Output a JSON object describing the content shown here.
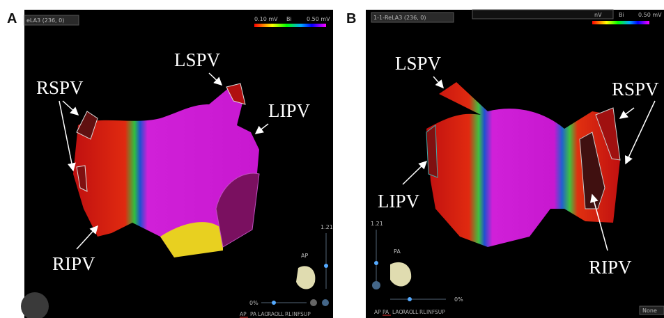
{
  "panels": [
    {
      "label": "A",
      "header": "eLA3 (236, 0)",
      "scale": {
        "min": "0.10 mV",
        "mode": "Bi",
        "max": "0.50 mV"
      },
      "zoom": "1.21",
      "view_label": "AP",
      "percent": "0%",
      "view_buttons": [
        "AP",
        "PA",
        "LAO",
        "RAO",
        "LL",
        "RL",
        "INF",
        "SUP"
      ],
      "annotations": {
        "lspv": "LSPV",
        "rspv": "RSPV",
        "lipv": "LIPV",
        "ripv": "RIPV"
      }
    },
    {
      "label": "B",
      "header": "1-1-ReLA3 (236, 0)",
      "scale": {
        "min": "nV",
        "mode": "Bi",
        "max": "0.50 mV"
      },
      "zoom": "1.21",
      "view_label": "PA",
      "percent": "0%",
      "view_buttons": [
        "AP",
        "PA",
        "LAO",
        "RAO",
        "LL",
        "RL",
        "INF",
        "SUP"
      ],
      "annotations": {
        "lspv": "LSPV",
        "rspv": "RSPV",
        "lipv": "LIPV",
        "ripv": "RIPV"
      },
      "dropdown": "None"
    }
  ]
}
